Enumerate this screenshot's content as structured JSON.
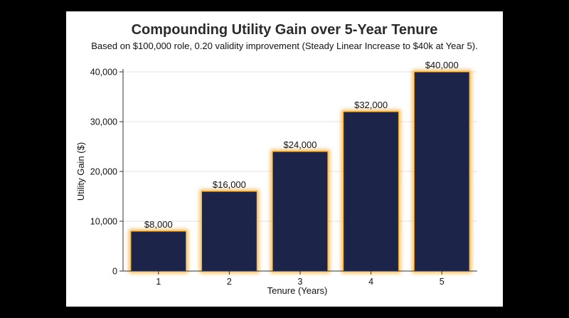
{
  "chart_data": {
    "type": "bar",
    "title": "Compounding Utility Gain over 5-Year Tenure",
    "subtitle": "Based on $100,000 role, 0.20 validity improvement (Steady Linear Increase to $40k at Year 5).",
    "xlabel": "Tenure (Years)",
    "ylabel": "Utility Gain ($)",
    "categories": [
      "1",
      "2",
      "3",
      "4",
      "5"
    ],
    "values": [
      8000,
      16000,
      24000,
      32000,
      40000
    ],
    "data_labels": [
      "$8,000",
      "$16,000",
      "$24,000",
      "$32,000",
      "$40,000"
    ],
    "ylim": [
      0,
      40000
    ],
    "yticks": [
      0,
      10000,
      20000,
      30000,
      40000
    ],
    "ytick_labels": [
      "0",
      "10,000",
      "20,000",
      "30,000",
      "40,000"
    ],
    "grid": "horizontal",
    "legend": "none"
  },
  "colors": {
    "bar_fill": "#1c2549",
    "bar_glow": "#f5a623",
    "grid": "#e3e3e3",
    "axis": "#333333",
    "background": "#ffffff",
    "outer_background": "#000000"
  }
}
